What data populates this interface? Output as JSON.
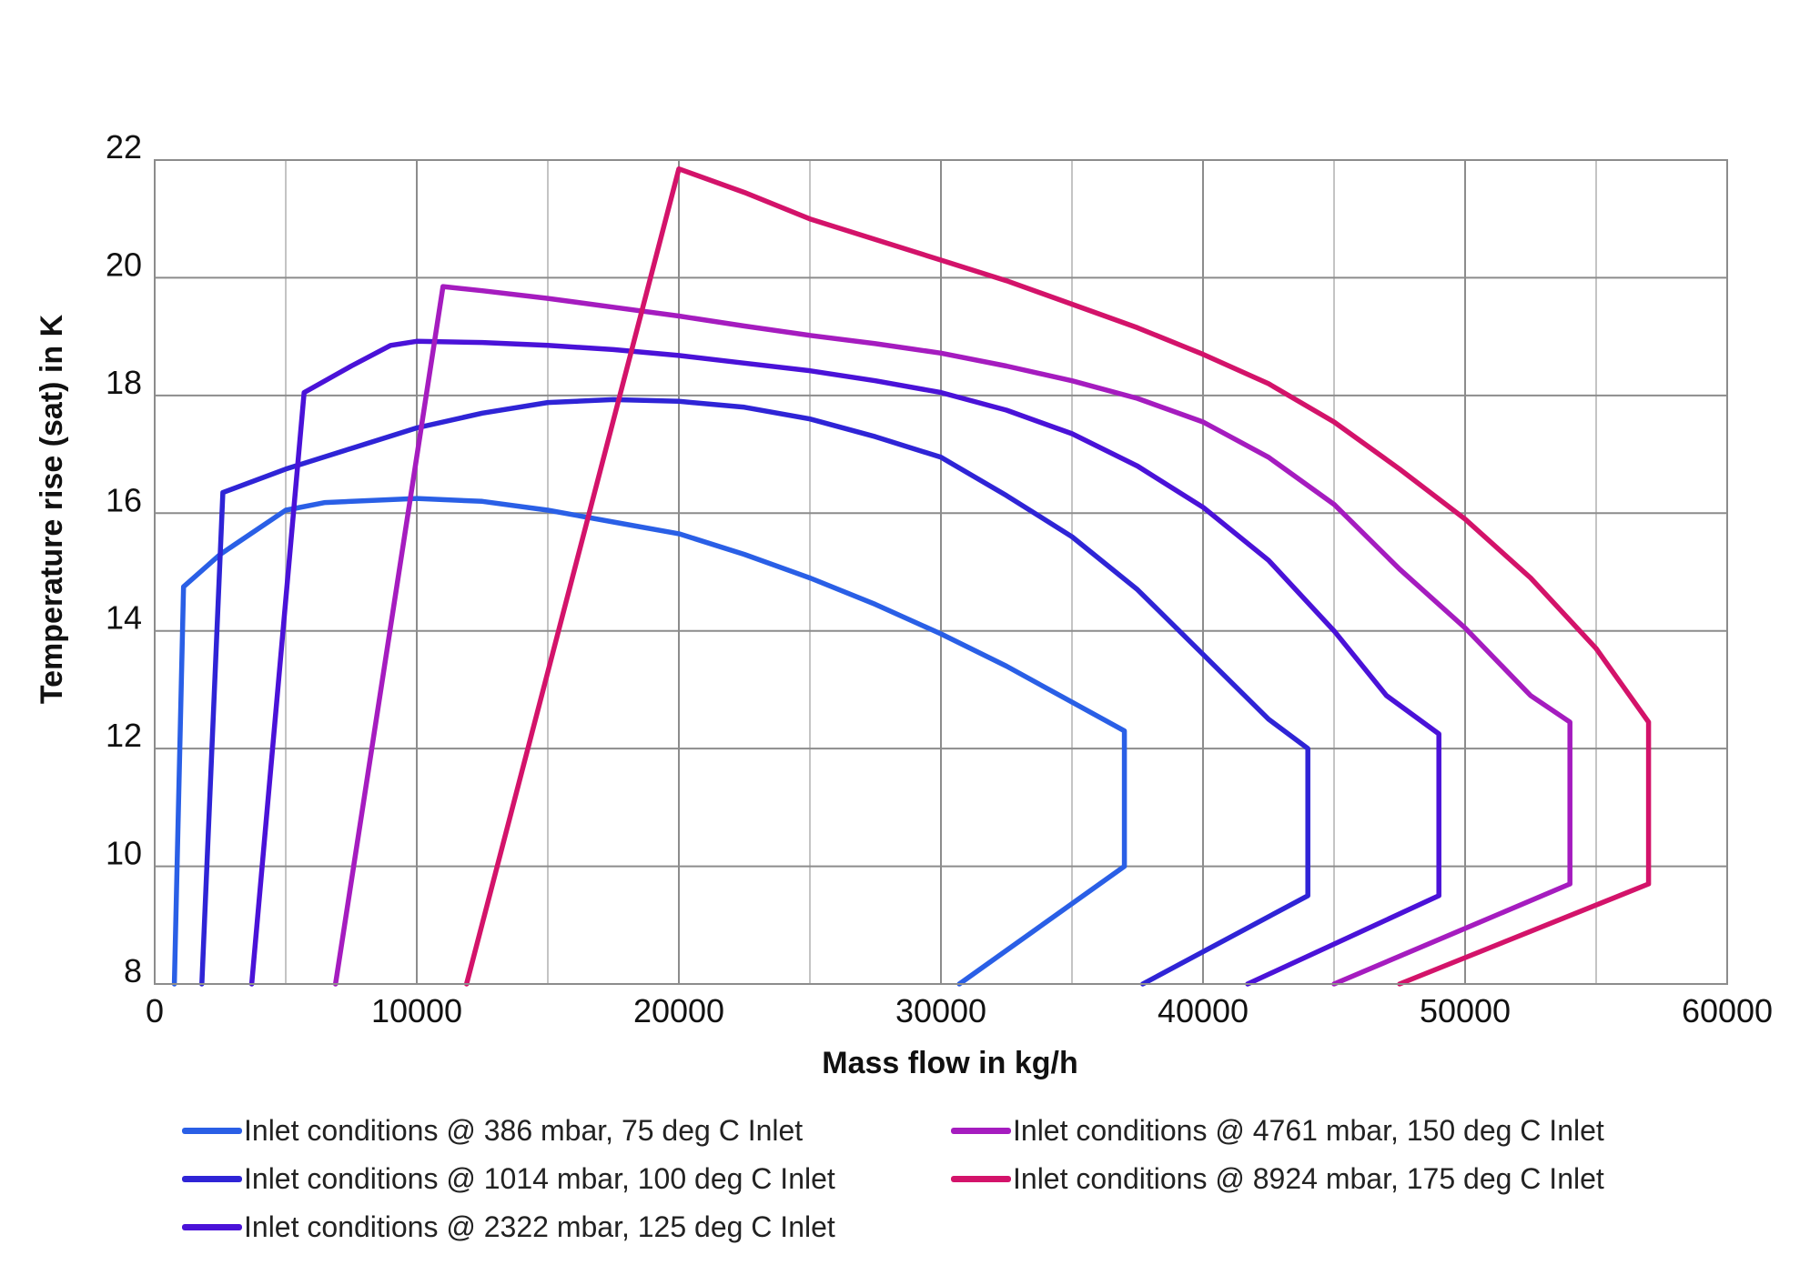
{
  "chart_data": {
    "type": "line",
    "xlabel": "Mass flow in kg/h",
    "ylabel": "Temperature rise (sat) in K",
    "xlim": [
      0,
      60000
    ],
    "ylim": [
      8,
      22
    ],
    "x_ticks": [
      0,
      10000,
      20000,
      30000,
      40000,
      50000,
      60000
    ],
    "y_ticks": [
      8,
      10,
      12,
      14,
      16,
      18,
      20,
      22
    ],
    "grid": true,
    "legend": "bottom",
    "series": [
      {
        "name": "Inlet conditions @ 386 mbar, 75 deg C Inlet",
        "color": "#2a5fe6",
        "points": [
          [
            750,
            8
          ],
          [
            1100,
            14.75
          ],
          [
            2500,
            15.3
          ],
          [
            5000,
            16.05
          ],
          [
            6500,
            16.18
          ],
          [
            10000,
            16.25
          ],
          [
            12500,
            16.2
          ],
          [
            15000,
            16.05
          ],
          [
            17500,
            15.85
          ],
          [
            20000,
            15.65
          ],
          [
            22500,
            15.3
          ],
          [
            25000,
            14.9
          ],
          [
            27500,
            14.45
          ],
          [
            30000,
            13.95
          ],
          [
            32500,
            13.4
          ],
          [
            37000,
            12.3
          ],
          [
            37000,
            10.0
          ],
          [
            30700,
            8
          ]
        ]
      },
      {
        "name": "Inlet conditions @ 1014 mbar, 100 deg C Inlet",
        "color": "#2f24d6",
        "points": [
          [
            1800,
            8
          ],
          [
            2600,
            16.35
          ],
          [
            5000,
            16.75
          ],
          [
            7500,
            17.1
          ],
          [
            10000,
            17.45
          ],
          [
            12500,
            17.7
          ],
          [
            15000,
            17.88
          ],
          [
            17500,
            17.93
          ],
          [
            20000,
            17.9
          ],
          [
            22500,
            17.8
          ],
          [
            25000,
            17.6
          ],
          [
            27500,
            17.3
          ],
          [
            30000,
            16.95
          ],
          [
            32500,
            16.3
          ],
          [
            35000,
            15.6
          ],
          [
            37500,
            14.7
          ],
          [
            40000,
            13.6
          ],
          [
            42500,
            12.5
          ],
          [
            44000,
            12.0
          ],
          [
            44000,
            9.5
          ],
          [
            37700,
            8
          ]
        ]
      },
      {
        "name": "Inlet conditions @ 2322 mbar, 125 deg C Inlet",
        "color": "#4a12d8",
        "points": [
          [
            3700,
            8
          ],
          [
            5700,
            18.05
          ],
          [
            7500,
            18.5
          ],
          [
            9000,
            18.85
          ],
          [
            10000,
            18.92
          ],
          [
            12500,
            18.9
          ],
          [
            15000,
            18.85
          ],
          [
            17500,
            18.78
          ],
          [
            20000,
            18.68
          ],
          [
            22500,
            18.55
          ],
          [
            25000,
            18.42
          ],
          [
            27500,
            18.25
          ],
          [
            30000,
            18.05
          ],
          [
            32500,
            17.75
          ],
          [
            35000,
            17.35
          ],
          [
            37500,
            16.8
          ],
          [
            40000,
            16.1
          ],
          [
            42500,
            15.2
          ],
          [
            45000,
            14.0
          ],
          [
            47000,
            12.9
          ],
          [
            49000,
            12.25
          ],
          [
            49000,
            9.5
          ],
          [
            41700,
            8
          ]
        ]
      },
      {
        "name": "Inlet conditions @ 4761 mbar, 150 deg C Inlet",
        "color": "#a51cbf",
        "points": [
          [
            6900,
            8
          ],
          [
            11000,
            19.85
          ],
          [
            12500,
            19.78
          ],
          [
            15000,
            19.65
          ],
          [
            17500,
            19.5
          ],
          [
            20000,
            19.35
          ],
          [
            22500,
            19.18
          ],
          [
            25000,
            19.02
          ],
          [
            27500,
            18.88
          ],
          [
            30000,
            18.72
          ],
          [
            32500,
            18.5
          ],
          [
            35000,
            18.25
          ],
          [
            37500,
            17.95
          ],
          [
            40000,
            17.55
          ],
          [
            42500,
            16.95
          ],
          [
            45000,
            16.15
          ],
          [
            47500,
            15.05
          ],
          [
            50000,
            14.05
          ],
          [
            52500,
            12.9
          ],
          [
            54000,
            12.45
          ],
          [
            54000,
            9.7
          ],
          [
            45000,
            8
          ]
        ]
      },
      {
        "name": "Inlet conditions @ 8924 mbar, 175 deg C Inlet",
        "color": "#d3136a",
        "points": [
          [
            11900,
            8
          ],
          [
            20000,
            21.85
          ],
          [
            22500,
            21.45
          ],
          [
            25000,
            21.0
          ],
          [
            27500,
            20.65
          ],
          [
            30000,
            20.3
          ],
          [
            32500,
            19.95
          ],
          [
            35000,
            19.55
          ],
          [
            37500,
            19.15
          ],
          [
            40000,
            18.7
          ],
          [
            42500,
            18.2
          ],
          [
            45000,
            17.55
          ],
          [
            47500,
            16.75
          ],
          [
            50000,
            15.9
          ],
          [
            52500,
            14.9
          ],
          [
            55000,
            13.7
          ],
          [
            57000,
            12.45
          ],
          [
            57000,
            9.7
          ],
          [
            47500,
            8
          ]
        ]
      }
    ]
  }
}
